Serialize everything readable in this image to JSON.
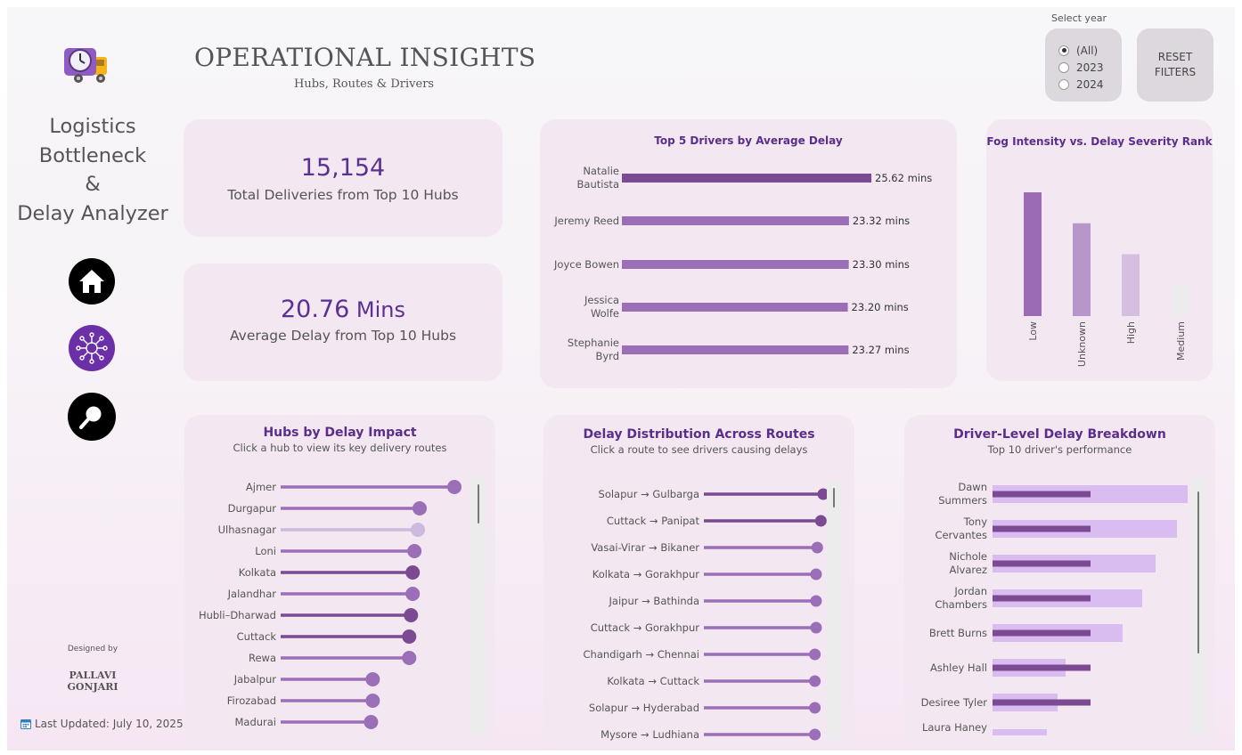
{
  "sidebar": {
    "app_title_lines": [
      "Logistics",
      "Bottleneck",
      "&",
      "Delay Analyzer"
    ],
    "nav": [
      {
        "name": "home",
        "icon": "home-icon",
        "color": "#000000"
      },
      {
        "name": "network",
        "icon": "network-icon",
        "color": "#6b2fa8"
      },
      {
        "name": "search",
        "icon": "search-icon",
        "color": "#000000"
      }
    ],
    "designed_by": "Designed by",
    "designer_lines": [
      "PALLAVI",
      "GONJARI"
    ],
    "last_updated": "Last Updated: July 10, 2025",
    "logo_icon": "delivery-truck-clock-icon",
    "calendar_icon": "calendar-icon"
  },
  "header": {
    "title": "OPERATIONAL INSIGHTS",
    "subtitle": "Hubs, Routes & Drivers"
  },
  "year_filter": {
    "label": "Select year",
    "options": [
      {
        "label": "(All)",
        "selected": true
      },
      {
        "label": "2023",
        "selected": false
      },
      {
        "label": "2024",
        "selected": false
      }
    ]
  },
  "reset_button": {
    "lines": [
      "RESET",
      "FILTERS"
    ]
  },
  "kpis": [
    {
      "value": "15,154",
      "unit": "",
      "label": "Total Deliveries from Top 10 Hubs"
    },
    {
      "value": "20.76",
      "unit": " Mins",
      "label": "Average Delay from Top 10 Hubs"
    }
  ],
  "colors": {
    "accent": "#5b2d8c",
    "bar_dark": "#7b4a92",
    "bar_mid": "#9b6fb8",
    "bar_light": "#cdb8de",
    "bar_pale": "#d9bdf0",
    "card_bg": "#f3e7f1"
  },
  "chart_data": [
    {
      "id": "top_drivers",
      "type": "bar",
      "orientation": "horizontal",
      "title": "Top 5 Drivers by Average Delay",
      "categories": [
        [
          "Natalie",
          "Bautista"
        ],
        [
          "Jeremy Reed"
        ],
        [
          "Joyce Bowen"
        ],
        [
          "Jessica",
          "Wolfe"
        ],
        [
          "Stephanie",
          "Byrd"
        ]
      ],
      "values": [
        25.62,
        23.32,
        23.3,
        23.2,
        23.27
      ],
      "value_labels": [
        "25.62 mins",
        "23.32 mins",
        "23.30 mins",
        "23.20 mins",
        "23.27 mins"
      ],
      "xlim": [
        0,
        25.62
      ]
    },
    {
      "id": "fog_intensity",
      "type": "bar",
      "title": "Fog Intensity vs. Delay Severity Rank",
      "categories": [
        "Low",
        "Unknown",
        "High",
        "Medium"
      ],
      "values": [
        4,
        3,
        2,
        1
      ],
      "ylim": [
        0,
        4
      ]
    },
    {
      "id": "hubs",
      "type": "lollipop",
      "title": "Hubs by Delay Impact",
      "subtitle": "Click a hub to view its key delivery routes",
      "categories": [
        "Ajmer",
        "Durgapur",
        "Ulhasnagar",
        "Loni",
        "Kolkata",
        "Jalandhar",
        "Hubli–Dharwad",
        "Cuttack",
        "Rewa",
        "Jabalpur",
        "Firozabad",
        "Madurai"
      ],
      "values": [
        100,
        80,
        79,
        77,
        76,
        76,
        75,
        74,
        74,
        53,
        53,
        52
      ],
      "shades": [
        "mid",
        "mid",
        "light",
        "mid",
        "dark",
        "mid",
        "dark",
        "dark",
        "mid",
        "mid",
        "mid",
        "mid"
      ],
      "xlim": [
        0,
        100
      ]
    },
    {
      "id": "routes",
      "type": "lollipop",
      "title": "Delay Distribution Across Routes",
      "subtitle": "Click a route to see drivers causing delays",
      "categories": [
        "Solapur → Gulbarga",
        "Cuttack → Panipat",
        "Vasai-Virar → Bikaner",
        "Kolkata → Gorakhpur",
        "Jaipur → Bathinda",
        "Cuttack → Gorakhpur",
        "Chandigarh → Chennai",
        "Kolkata → Cuttack",
        "Solapur → Hyderabad",
        "Mysore → Ludhiana"
      ],
      "values": [
        100,
        98,
        95,
        94,
        94,
        94,
        93,
        93,
        93,
        93
      ],
      "shades": [
        "dark",
        "dark",
        "mid",
        "mid",
        "mid",
        "mid",
        "mid",
        "mid",
        "mid",
        "mid"
      ],
      "xlim": [
        0,
        100
      ]
    },
    {
      "id": "driver_breakdown",
      "type": "bar",
      "orientation": "horizontal",
      "title": "Driver-Level Delay Breakdown",
      "subtitle": "Top 10 driver's performance",
      "categories": [
        [
          "Dawn",
          "Summers"
        ],
        [
          "Tony",
          "Cervantes"
        ],
        [
          "Nichole",
          "Alvarez"
        ],
        [
          "Jordan",
          "Chambers"
        ],
        [
          "Brett Burns"
        ],
        [
          "Ashley Hall"
        ],
        [
          "Desiree Tyler"
        ],
        [
          "Laura Haney"
        ]
      ],
      "series": [
        {
          "values": [
            219,
            207,
            183,
            168,
            146,
            82,
            73,
            61
          ]
        },
        {
          "values": [
            110,
            110,
            110,
            110,
            110,
            110,
            110,
            null
          ]
        }
      ],
      "xlim": [
        0,
        219
      ]
    }
  ]
}
